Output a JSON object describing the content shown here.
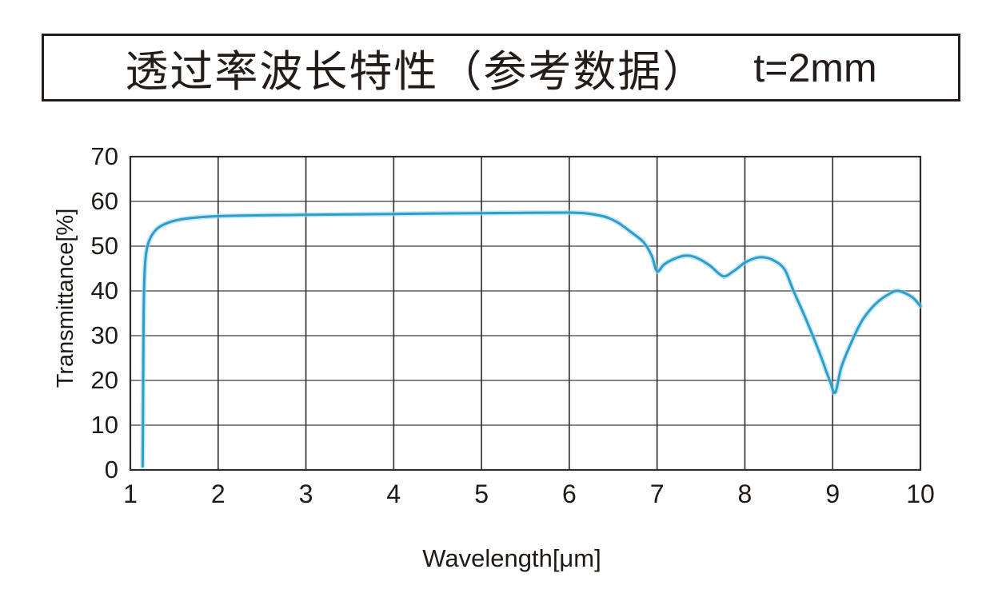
{
  "title": {
    "text": "透过率波长特性（参考数据）",
    "annotation": "t=2mm"
  },
  "colors": {
    "curve": "#2d9dc9",
    "curve_glow": "#9ed7ef",
    "grid_horizontal": "#5c5c5c",
    "grid_vertical": "#383838",
    "frame": "#2d2d2d",
    "text": "#1f1a16"
  },
  "chart_data": {
    "type": "line",
    "title": "透过率波长特性（参考数据） t=2mm",
    "xlabel": "Wavelength[μm]",
    "ylabel": "Transmittance[%]",
    "xlim": [
      1,
      10
    ],
    "ylim": [
      0,
      70
    ],
    "x_ticks": [
      1,
      2,
      3,
      4,
      5,
      6,
      7,
      8,
      9,
      10
    ],
    "y_ticks": [
      0,
      10,
      20,
      30,
      40,
      50,
      60,
      70
    ],
    "grid": true,
    "legend": "none",
    "series": [
      {
        "name": "Transmittance t=2mm",
        "points": [
          [
            1.14,
            0.8
          ],
          [
            1.145,
            15
          ],
          [
            1.15,
            32
          ],
          [
            1.16,
            43
          ],
          [
            1.18,
            48.5
          ],
          [
            1.22,
            51.5
          ],
          [
            1.3,
            53.8
          ],
          [
            1.4,
            55.0
          ],
          [
            1.55,
            55.9
          ],
          [
            1.75,
            56.4
          ],
          [
            2.0,
            56.7
          ],
          [
            2.5,
            56.9
          ],
          [
            3.0,
            57.0
          ],
          [
            3.5,
            57.1
          ],
          [
            4.0,
            57.2
          ],
          [
            4.5,
            57.3
          ],
          [
            5.0,
            57.35
          ],
          [
            5.5,
            57.45
          ],
          [
            6.0,
            57.5
          ],
          [
            6.2,
            57.3
          ],
          [
            6.4,
            56.6
          ],
          [
            6.55,
            55.3
          ],
          [
            6.7,
            53.2
          ],
          [
            6.85,
            50.8
          ],
          [
            6.94,
            47.8
          ],
          [
            7.0,
            44.4
          ],
          [
            7.08,
            45.9
          ],
          [
            7.2,
            47.2
          ],
          [
            7.33,
            47.9
          ],
          [
            7.45,
            47.4
          ],
          [
            7.6,
            45.7
          ],
          [
            7.75,
            43.3
          ],
          [
            7.87,
            44.4
          ],
          [
            8.0,
            46.3
          ],
          [
            8.13,
            47.4
          ],
          [
            8.22,
            47.5
          ],
          [
            8.32,
            46.9
          ],
          [
            8.45,
            44.9
          ],
          [
            8.55,
            40.2
          ],
          [
            8.7,
            33.5
          ],
          [
            8.85,
            26.2
          ],
          [
            8.97,
            19.8
          ],
          [
            9.03,
            17.3
          ],
          [
            9.1,
            23.0
          ],
          [
            9.22,
            28.8
          ],
          [
            9.35,
            33.8
          ],
          [
            9.5,
            37.3
          ],
          [
            9.65,
            39.4
          ],
          [
            9.75,
            40.0
          ],
          [
            9.9,
            38.7
          ],
          [
            10.0,
            36.6
          ]
        ]
      }
    ]
  }
}
